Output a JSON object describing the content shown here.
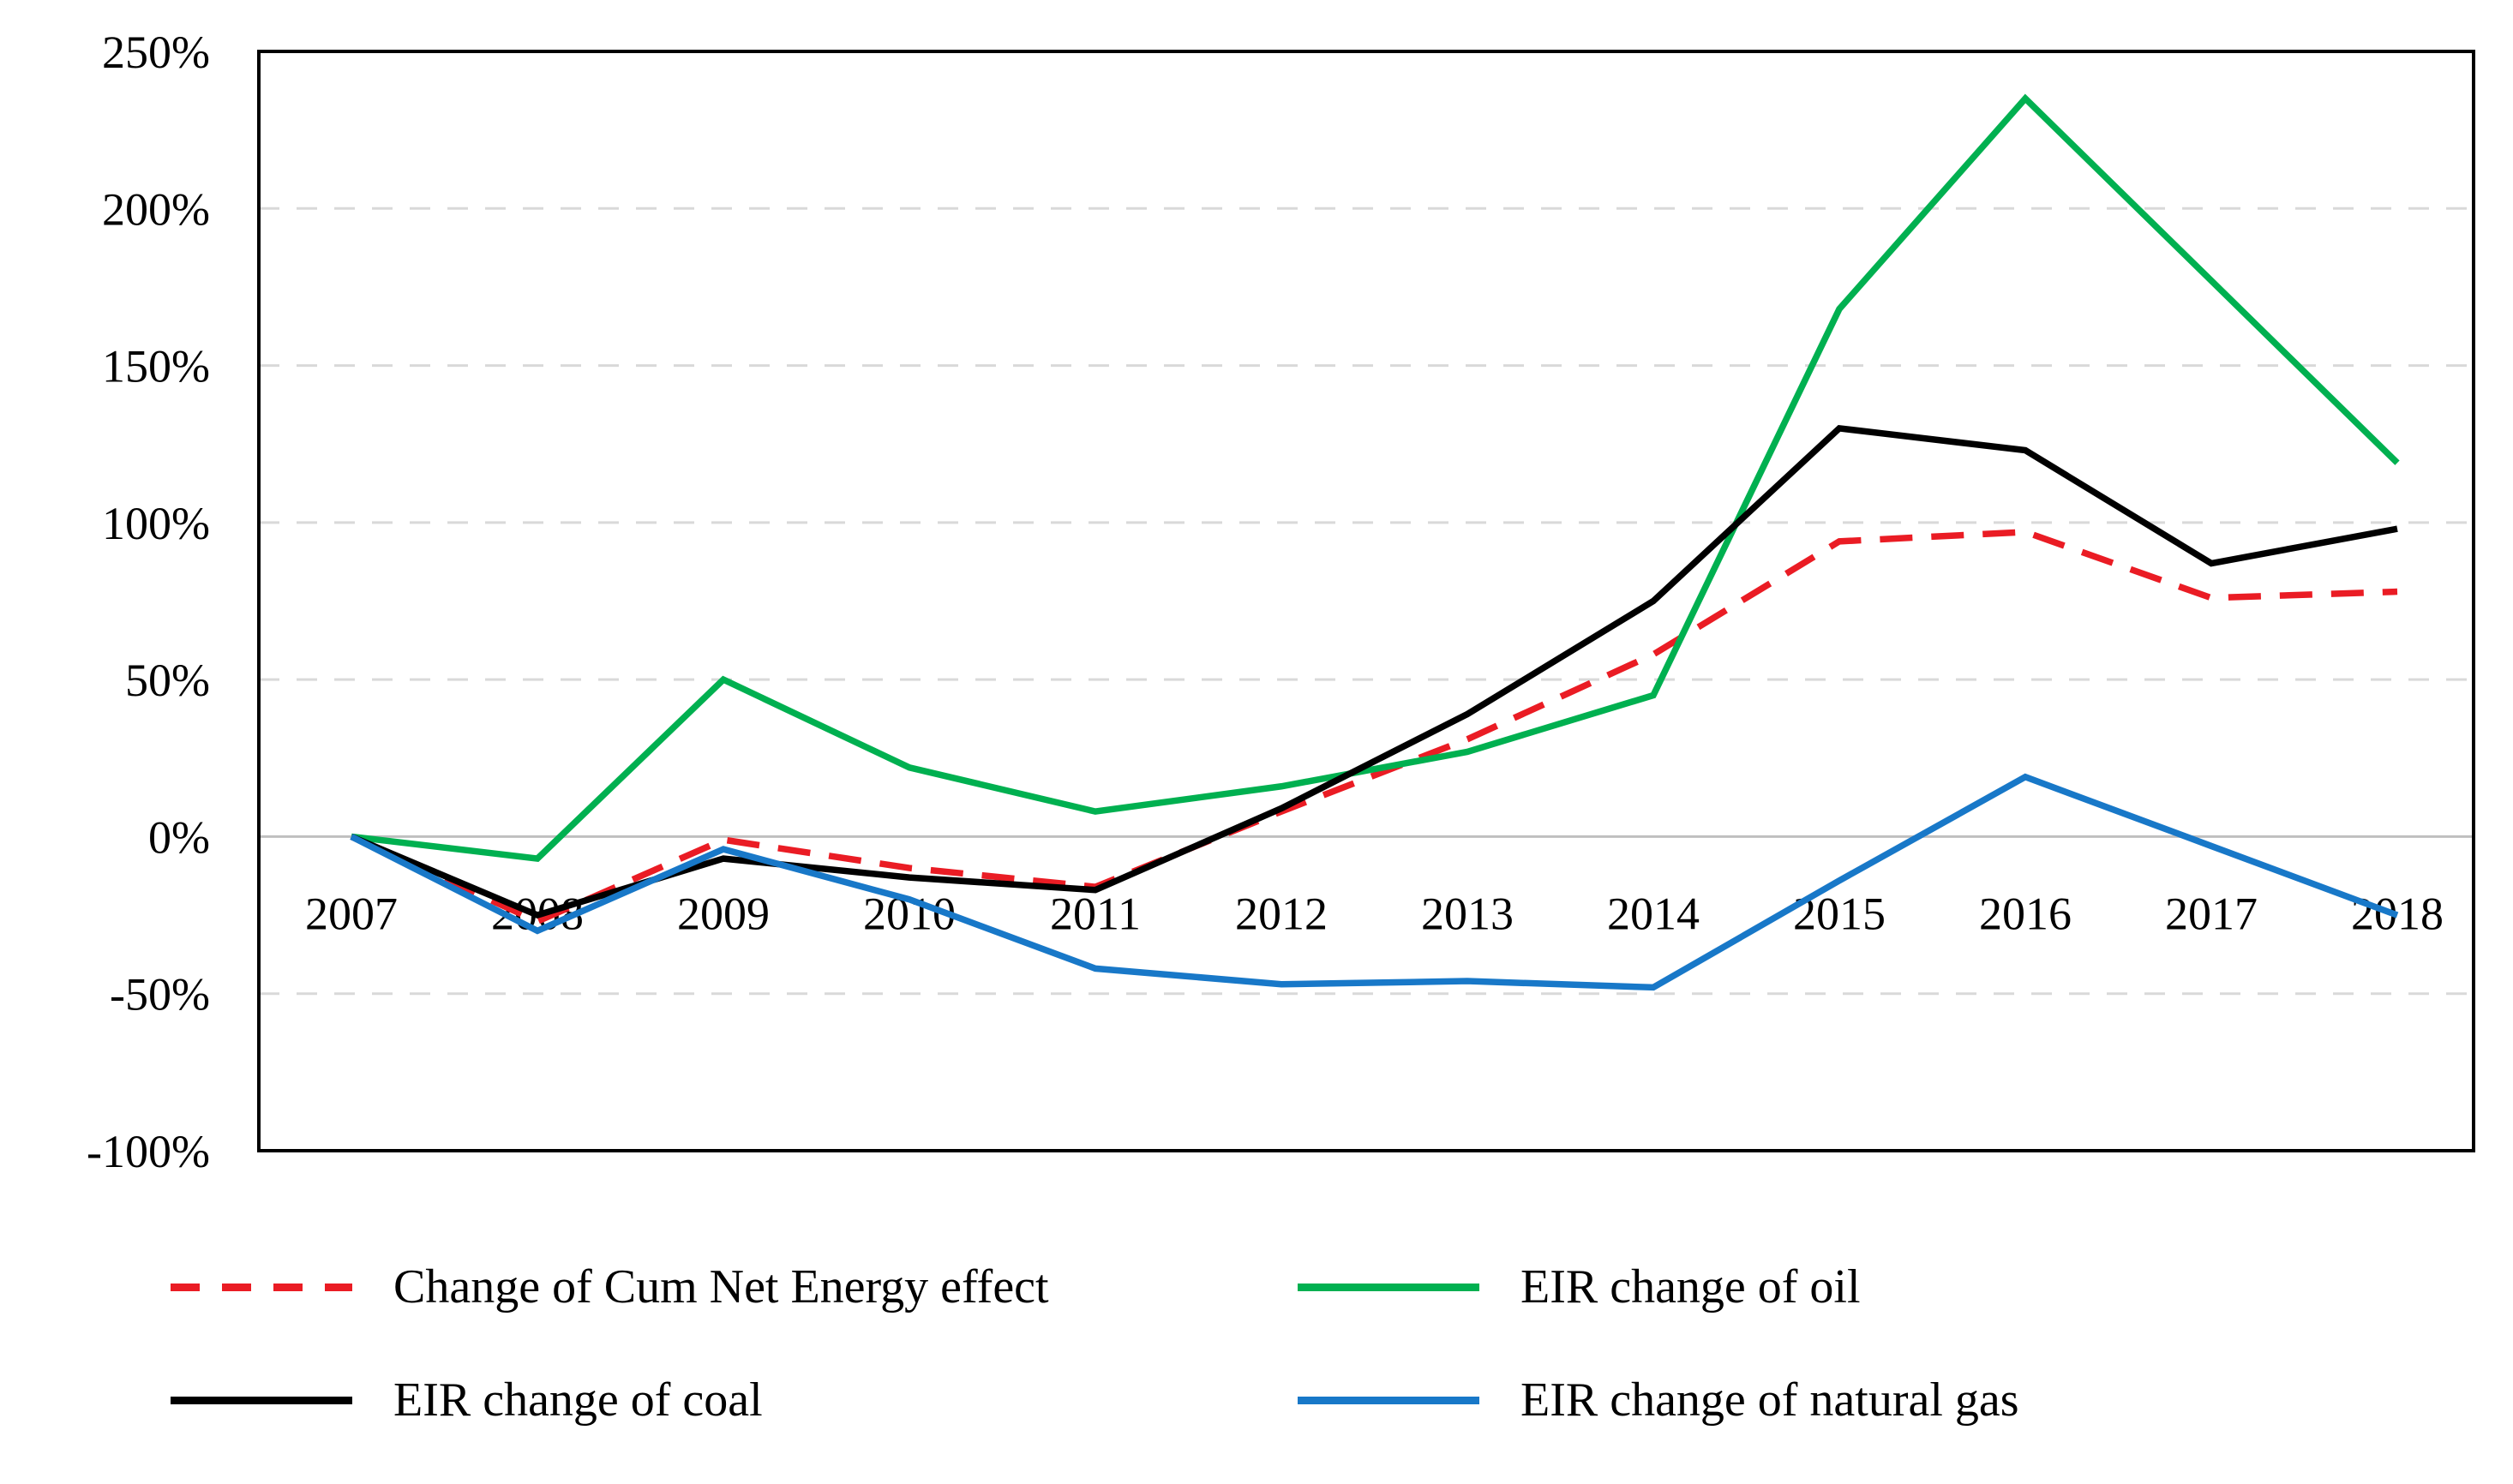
{
  "chart_data": {
    "type": "line",
    "title": "",
    "xlabel": "",
    "ylabel": "",
    "categories": [
      "2007",
      "2008",
      "2009",
      "2010",
      "2011",
      "2012",
      "2013",
      "2014",
      "2015",
      "2016",
      "2017",
      "2018"
    ],
    "series": [
      {
        "name": "Change of Cum Net Energy effect",
        "color": "#EA1C24",
        "dash": "dashed",
        "values": [
          0,
          -27,
          -1,
          -10,
          -16,
          8,
          31,
          58,
          94,
          97,
          76,
          78
        ]
      },
      {
        "name": "EIR change of oil",
        "color": "#00B050",
        "dash": "solid",
        "values": [
          0,
          -7,
          50,
          22,
          8,
          16,
          27,
          45,
          168,
          235,
          177,
          119
        ]
      },
      {
        "name": "EIR change of coal",
        "color": "#000000",
        "dash": "solid",
        "values": [
          0,
          -25,
          -7,
          -13,
          -17,
          9,
          39,
          75,
          130,
          123,
          87,
          98
        ]
      },
      {
        "name": "EIR change of natural gas",
        "color": "#1878C8",
        "dash": "solid",
        "values": [
          0,
          -30,
          -4,
          -20,
          -42,
          -47,
          -46,
          -48,
          -14,
          19,
          -3,
          -25
        ]
      }
    ],
    "ylim": [
      -100,
      250
    ],
    "ytick_step": 50,
    "yticks": [
      {
        "value": 250,
        "label": "250%"
      },
      {
        "value": 200,
        "label": "200%"
      },
      {
        "value": 150,
        "label": "150%"
      },
      {
        "value": 100,
        "label": "100%"
      },
      {
        "value": 50,
        "label": "50%"
      },
      {
        "value": 0,
        "label": "0%"
      },
      {
        "value": -50,
        "label": "-50%"
      },
      {
        "value": -100,
        "label": "-100%"
      }
    ],
    "grid": "horizontal dashed gridlines, solid light zero line",
    "legend_position": "bottom, two columns",
    "colors": {
      "gridline": "#D9D9D9",
      "zero_line": "#BFBFBF",
      "plot_border": "#000000",
      "background": "#FFFFFF"
    }
  }
}
